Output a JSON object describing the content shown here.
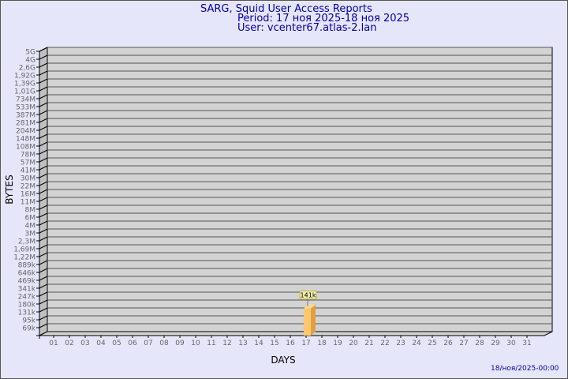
{
  "header": {
    "title": "SARG, Squid User Access Reports",
    "period": "Period: 17 ноя 2025-18 ноя 2025",
    "user": "User: vcenter67.atlas-2.lan"
  },
  "footer": {
    "timestamp": "18/ноя/2025-00:00"
  },
  "colors": {
    "background": "#e6e6fa",
    "plot": "#d3d3d3",
    "bar": "#ffc66e",
    "bar_side": "#e0a040",
    "title": "#0000aa"
  },
  "chart_data": {
    "type": "bar",
    "xlabel": "DAYS",
    "ylabel": "BYTES",
    "yscale": "log",
    "y_tick_labels": [
      "5G",
      "4G",
      "2,6G",
      "1,92G",
      "1,39G",
      "1,01G",
      "734M",
      "533M",
      "387M",
      "281M",
      "204M",
      "148M",
      "108M",
      "78M",
      "57M",
      "41M",
      "30M",
      "22M",
      "16M",
      "11M",
      "8M",
      "6M",
      "4M",
      "3M",
      "2,3M",
      "1,69M",
      "1,22M",
      "889k",
      "646k",
      "469k",
      "341k",
      "247k",
      "180k",
      "131k",
      "95k",
      "69k"
    ],
    "categories": [
      "01",
      "02",
      "03",
      "04",
      "05",
      "06",
      "07",
      "08",
      "09",
      "10",
      "11",
      "12",
      "13",
      "14",
      "15",
      "16",
      "17",
      "18",
      "19",
      "20",
      "21",
      "22",
      "23",
      "24",
      "25",
      "26",
      "27",
      "28",
      "29",
      "30",
      "31"
    ],
    "bars": [
      {
        "day": "17",
        "value": 141000,
        "label": "141k"
      }
    ],
    "grid": true
  }
}
